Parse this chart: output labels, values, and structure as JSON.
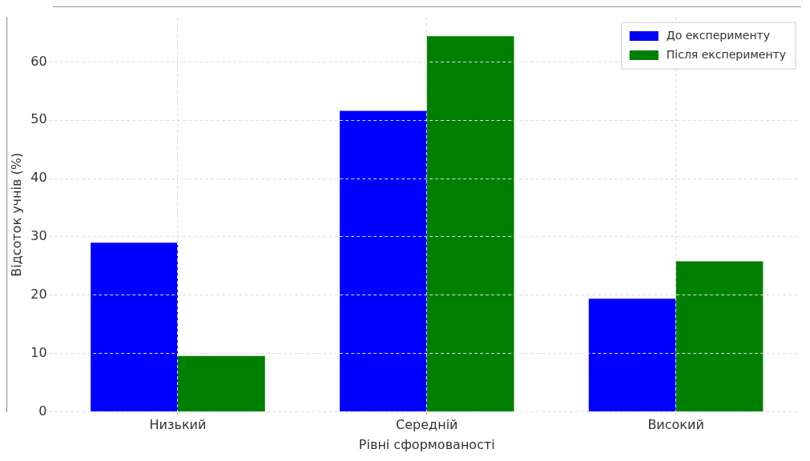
{
  "chart_data": {
    "type": "bar",
    "xlabel": "Рівні сформованості",
    "ylabel": "Відсоток учнів (%)",
    "categories": [
      "Низький",
      "Середній",
      "Високий"
    ],
    "series": [
      {
        "name": "До експерименту",
        "color": "#0000ff",
        "values": [
          29.0,
          51.6,
          19.4
        ]
      },
      {
        "name": "Після експерименту",
        "color": "#008000",
        "values": [
          9.6,
          64.4,
          25.8
        ]
      }
    ],
    "ylim": [
      0,
      67.6
    ],
    "yticks": [
      0,
      10,
      20,
      30,
      40,
      50,
      60
    ],
    "grid": true,
    "legend": "top right"
  }
}
